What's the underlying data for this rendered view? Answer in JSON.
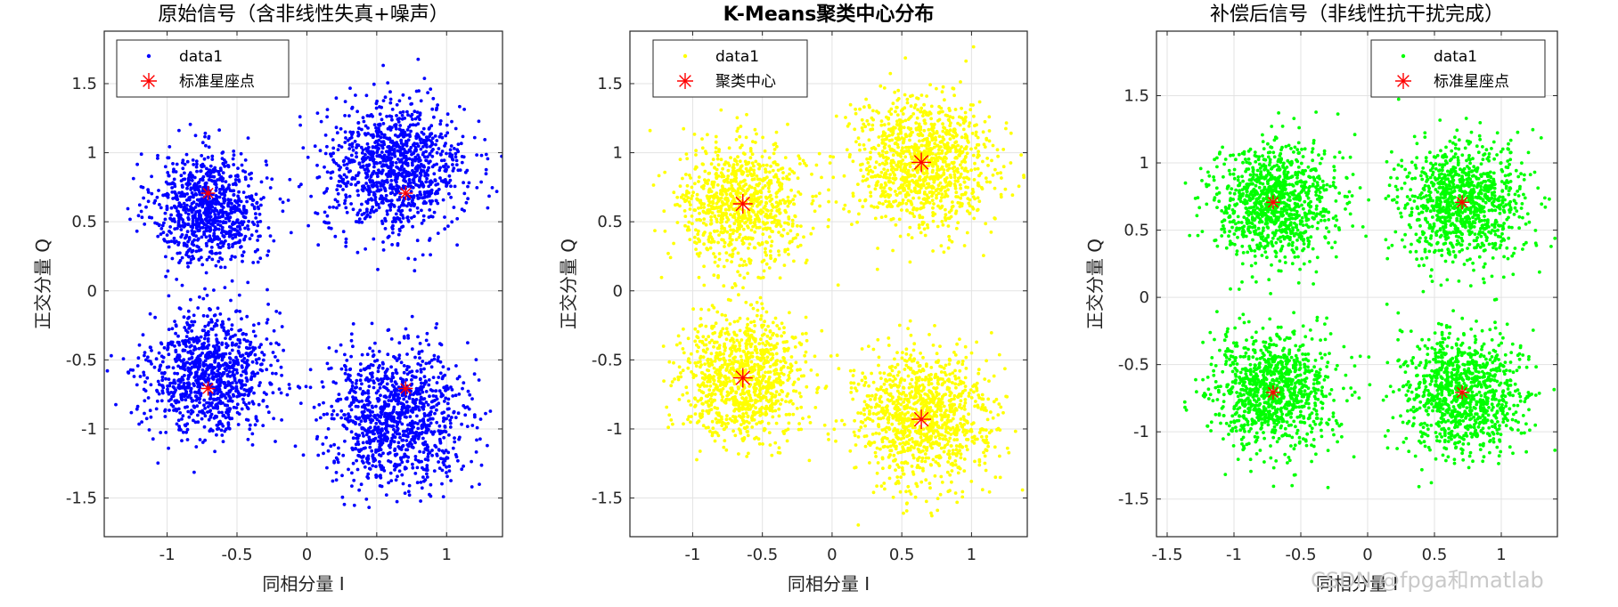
{
  "chart_data": [
    {
      "type": "scatter",
      "title": "原始信号（含非线性失真+噪声）",
      "xlabel": "同相分量 I",
      "ylabel": "正交分量 Q",
      "xlim": [
        -1.45,
        1.4
      ],
      "ylim": [
        -1.78,
        1.88
      ],
      "xticks": [
        -1,
        -0.5,
        0,
        0.5,
        1
      ],
      "xtick_labels": [
        "-1",
        "-0.5",
        "0",
        "0.5",
        "1"
      ],
      "yticks": [
        -1.5,
        -1,
        -0.5,
        0,
        0.5,
        1,
        1.5
      ],
      "ytick_labels": [
        "-1.5",
        "-1",
        "-0.5",
        "0",
        "0.5",
        "1",
        "1.5"
      ],
      "grid": true,
      "legend_location": "top-left",
      "series": [
        {
          "name": "data1",
          "marker": "dot",
          "color": "#0000ff",
          "clusters": [
            {
              "center": [
                -0.7,
                0.6
              ],
              "spread": [
                0.2,
                0.2
              ],
              "count": 900
            },
            {
              "center": [
                0.63,
                0.88
              ],
              "spread": [
                0.25,
                0.24
              ],
              "count": 1100
            },
            {
              "center": [
                -0.7,
                -0.6
              ],
              "spread": [
                0.22,
                0.22
              ],
              "count": 1000
            },
            {
              "center": [
                0.65,
                -0.9
              ],
              "spread": [
                0.25,
                0.24
              ],
              "count": 1100
            }
          ]
        },
        {
          "name": "标准星座点",
          "marker": "asterisk",
          "color": "#ff0000",
          "points": [
            [
              -0.7071,
              0.7071
            ],
            [
              0.7071,
              0.7071
            ],
            [
              -0.7071,
              -0.7071
            ],
            [
              0.7071,
              -0.7071
            ]
          ]
        }
      ]
    },
    {
      "type": "scatter",
      "title": "K-Means聚类中心分布",
      "xlabel": "同相分量 I",
      "ylabel": "正交分量 Q",
      "xlim": [
        -1.45,
        1.4
      ],
      "ylim": [
        -1.78,
        1.88
      ],
      "xticks": [
        -1,
        -0.5,
        0,
        0.5,
        1
      ],
      "xtick_labels": [
        "-1",
        "-0.5",
        "0",
        "0.5",
        "1"
      ],
      "yticks": [
        -1.5,
        -1,
        -0.5,
        0,
        0.5,
        1,
        1.5
      ],
      "ytick_labels": [
        "-1.5",
        "-1",
        "-0.5",
        "0",
        "0.5",
        "1",
        "1.5"
      ],
      "grid": true,
      "legend_location": "top-left",
      "series": [
        {
          "name": "data1",
          "marker": "dot",
          "color": "#ffff00",
          "clusters": [
            {
              "center": [
                -0.65,
                0.62
              ],
              "spread": [
                0.22,
                0.22
              ],
              "count": 900
            },
            {
              "center": [
                0.64,
                0.92
              ],
              "spread": [
                0.25,
                0.24
              ],
              "count": 1100
            },
            {
              "center": [
                -0.65,
                -0.62
              ],
              "spread": [
                0.22,
                0.22
              ],
              "count": 1000
            },
            {
              "center": [
                0.64,
                -0.92
              ],
              "spread": [
                0.25,
                0.24
              ],
              "count": 1100
            }
          ]
        },
        {
          "name": "聚类中心",
          "marker": "asterisk",
          "color": "#ff0000",
          "points": [
            [
              -0.64,
              0.63
            ],
            [
              0.64,
              0.93
            ],
            [
              -0.64,
              -0.63
            ],
            [
              0.64,
              -0.93
            ]
          ]
        }
      ]
    },
    {
      "type": "scatter",
      "title": "补偿后信号（非线性抗干扰完成）",
      "xlabel": "同相分量 I",
      "ylabel": "正交分量 Q",
      "xlim": [
        -1.58,
        1.42
      ],
      "ylim": [
        -1.78,
        1.98
      ],
      "xticks": [
        -1.5,
        -1,
        -0.5,
        0,
        0.5,
        1
      ],
      "xtick_labels": [
        "-1.5",
        "-1",
        "-0.5",
        "0",
        "0.5",
        "1"
      ],
      "yticks": [
        -1.5,
        -1,
        -0.5,
        0,
        0.5,
        1,
        1.5
      ],
      "ytick_labels": [
        "-1.5",
        "-1",
        "-0.5",
        "0",
        "0.5",
        "1",
        "1.5"
      ],
      "grid": true,
      "legend_location": "top-right",
      "series": [
        {
          "name": "data1",
          "marker": "dot",
          "color": "#00ff00",
          "clusters": [
            {
              "center": [
                -0.7071,
                0.7071
              ],
              "spread": [
                0.23,
                0.22
              ],
              "count": 1000
            },
            {
              "center": [
                0.7071,
                0.7071
              ],
              "spread": [
                0.23,
                0.22
              ],
              "count": 1000
            },
            {
              "center": [
                -0.7071,
                -0.7071
              ],
              "spread": [
                0.23,
                0.22
              ],
              "count": 1000
            },
            {
              "center": [
                0.7071,
                -0.7071
              ],
              "spread": [
                0.23,
                0.22
              ],
              "count": 1000
            }
          ]
        },
        {
          "name": "标准星座点",
          "marker": "asterisk",
          "color": "#ff0000",
          "points": [
            [
              -0.7071,
              0.7071
            ],
            [
              0.7071,
              0.7071
            ],
            [
              -0.7071,
              -0.7071
            ],
            [
              0.7071,
              -0.7071
            ]
          ]
        }
      ]
    }
  ],
  "watermark": "CSDN @fpga和matlab"
}
